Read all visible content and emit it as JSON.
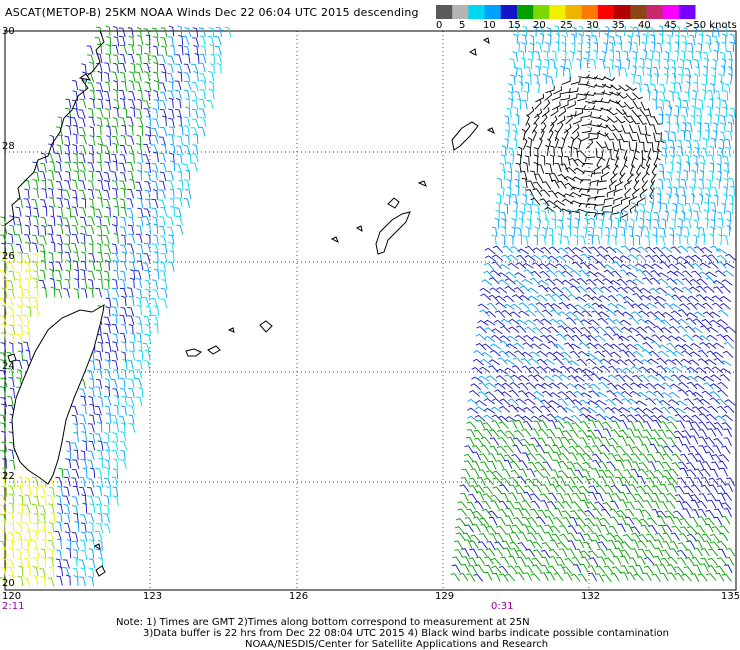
{
  "title": "ASCAT(METOP-B) 25KM NOAA Winds   Dec 22 06:04 UTC 2015 descending",
  "legend": {
    "labels": [
      "0",
      "5",
      "10",
      "15",
      "20",
      "25",
      "30",
      "35",
      "40",
      "45",
      ">50 knots"
    ],
    "colors": [
      "#5a5a5a",
      "#b4b4b4",
      "#00d8f0",
      "#00a0ff",
      "#1414c8",
      "#00a000",
      "#7cd800",
      "#f0f000",
      "#f0b400",
      "#ff7800",
      "#ff0000",
      "#b40000",
      "#8c4614",
      "#c8286e",
      "#ff00ff",
      "#7800ff"
    ]
  },
  "axes": {
    "lat_labels": [
      "30",
      "28",
      "26",
      "24",
      "22",
      "20"
    ],
    "lon_labels": [
      "120",
      "123",
      "126",
      "129",
      "132",
      "135"
    ]
  },
  "pass_times": {
    "left": "2:11",
    "right": "0:31"
  },
  "notes": [
    "Note: 1) Times are GMT 2)Times along bottom correspond to measurement at 25N",
    "3)Data buffer is 22 hrs from Dec 22 08:04 UTC 2015 4) Black wind barbs indicate possible contamination",
    "NOAA/NESDIS/Center for Satellite Applications and Research"
  ]
}
